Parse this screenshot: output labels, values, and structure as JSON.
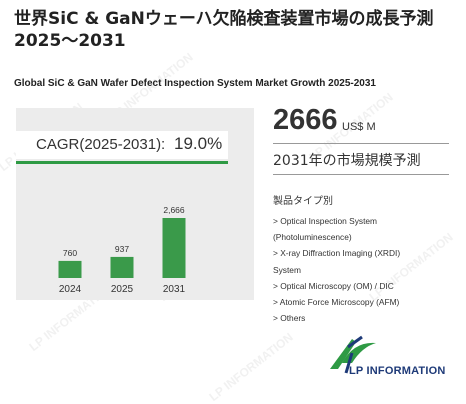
{
  "title": "世界SiC & GaNウェーハ欠陥検査装置市場の成長予測2025～2031",
  "subtitle": "Global SiC & GaN Wafer Defect Inspection System Market Growth 2025-2031",
  "cagr": {
    "label": "CAGR(2025-2031):",
    "value": "19.0%"
  },
  "market": {
    "value": "2666",
    "unit": "US$ M",
    "caption": "2031年の市場規模予測"
  },
  "segments": {
    "title": "製品タイプ別",
    "items": [
      "> Optical Inspection System",
      "(Photoluminescence)",
      "> X-ray Diffraction Imaging (XRDI)",
      "System",
      "> Optical Microscopy (OM) / DIC",
      "> Atomic Force Microscopy (AFM)",
      "> Others"
    ]
  },
  "logo": {
    "text": "LP INFORMATION"
  },
  "watermark": "LP INFORMATION",
  "colors": {
    "bar": "#3a9a4a",
    "accent": "#2e9a44",
    "logo_blue": "#1e3a78",
    "panel": "#ececec"
  },
  "chart_data": {
    "type": "bar",
    "categories": [
      "2024",
      "2025",
      "2031"
    ],
    "values": [
      760,
      937,
      2666
    ],
    "labels": [
      "760",
      "937",
      "2,666"
    ],
    "title": "",
    "xlabel": "",
    "ylabel": "",
    "ylim": [
      0,
      2666
    ],
    "grid": false,
    "legend": "none"
  }
}
